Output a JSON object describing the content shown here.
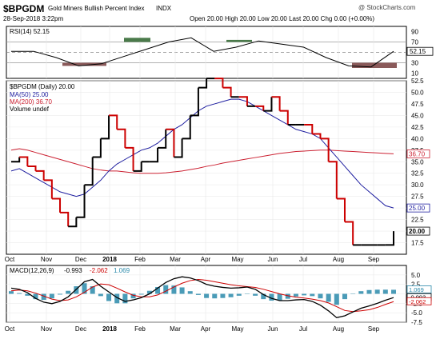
{
  "header": {
    "symbol": "$BPGDM",
    "name": "Gold Miners Bullish Percent Index",
    "exchange": "INDX",
    "date": "28-Sep-2018 3:22pm",
    "quote": "Open 20.00  High 20.00  Low 20.00  Last 20.00  Chg 0.00 (+0.00%)",
    "watermark": "@ StockCharts.com"
  },
  "colors": {
    "price": "#000000",
    "price_down": "#cc0000",
    "ma50": "#1f1fa0",
    "ma200": "#cc2233",
    "rsi_over": "#4a7a4a",
    "rsi_under": "#8a5a5a",
    "macd": "#000000",
    "signal": "#cc0000",
    "histogram": "#2a8aaa"
  },
  "chart_data": [
    {
      "type": "line",
      "title": "RSI(14) 52.15",
      "panel": "rsi",
      "ylim": [
        0,
        100
      ],
      "yticks": [
        "90",
        "70",
        "50",
        "30",
        "10"
      ],
      "last_label": "52.15",
      "x": [
        0,
        3,
        6,
        9,
        12,
        15,
        18,
        21,
        24,
        27,
        30,
        33,
        36,
        39,
        42,
        45,
        48,
        51
      ],
      "series": [
        {
          "name": "RSI(14)",
          "values": [
            52,
            52,
            40,
            24,
            28,
            42,
            56,
            70,
            78,
            52,
            60,
            72,
            66,
            60,
            40,
            24,
            22,
            52
          ]
        }
      ]
    },
    {
      "type": "line",
      "title": "$BPGDM (Daily) 20.00",
      "panel": "price",
      "ylim": [
        15,
        52.5
      ],
      "yticks": [
        "52.5",
        "50.0",
        "47.5",
        "45.0",
        "42.5",
        "40.0",
        "37.5",
        "35.0",
        "32.5",
        "30.0",
        "27.5",
        "25.0",
        "22.5",
        "20.0",
        "17.5"
      ],
      "legend": [
        "MA(50) 25.00",
        "MA(200) 36.70",
        "Volume undef"
      ],
      "last_labels": {
        "ma200": "36.70",
        "ma50": "25.00",
        "price": "20.00"
      },
      "x_labels": [
        "Oct",
        "Nov",
        "Dec",
        "2018",
        "Feb",
        "Mar",
        "Apr",
        "May",
        "Jun",
        "Jul",
        "Aug",
        "Sep"
      ],
      "series": [
        {
          "name": "$BPGDM",
          "points": [
            [
              0,
              35
            ],
            [
              1,
              36
            ],
            [
              2,
              34
            ],
            [
              3,
              33
            ],
            [
              4,
              31
            ],
            [
              5,
              27
            ],
            [
              6,
              24
            ],
            [
              7,
              21
            ],
            [
              8,
              23
            ],
            [
              9,
              30
            ],
            [
              10,
              36
            ],
            [
              11,
              40
            ],
            [
              12,
              45
            ],
            [
              13,
              42
            ],
            [
              14,
              38
            ],
            [
              15,
              33
            ],
            [
              16,
              35
            ],
            [
              17,
              35
            ],
            [
              18,
              38
            ],
            [
              19,
              42
            ],
            [
              20,
              36
            ],
            [
              21,
              40
            ],
            [
              22,
              45
            ],
            [
              23,
              51
            ],
            [
              24,
              53
            ],
            [
              25,
              53
            ],
            [
              26,
              51
            ],
            [
              27,
              49
            ],
            [
              28,
              49
            ],
            [
              29,
              47
            ],
            [
              30,
              47
            ],
            [
              31,
              46
            ],
            [
              32,
              49
            ],
            [
              33,
              46
            ],
            [
              34,
              43
            ],
            [
              35,
              43
            ],
            [
              36,
              43
            ],
            [
              37,
              41
            ],
            [
              38,
              40
            ],
            [
              39,
              35
            ],
            [
              40,
              27
            ],
            [
              41,
              22
            ],
            [
              42,
              17
            ],
            [
              43,
              17
            ],
            [
              44,
              17
            ],
            [
              45,
              17
            ],
            [
              46,
              17
            ],
            [
              47,
              20
            ]
          ]
        },
        {
          "name": "MA(50)",
          "values": [
            33,
            33.5,
            32.5,
            31.5,
            30.5,
            29.5,
            28.5,
            28,
            27.5,
            28,
            29.5,
            31,
            33,
            34.5,
            35.5,
            36.5,
            37.5,
            38,
            39,
            40.5,
            42,
            43,
            44.5,
            46,
            47,
            47.5,
            48,
            48.5,
            48.5,
            48,
            47,
            46,
            45,
            44,
            43,
            42,
            41.5,
            41,
            40,
            38,
            36,
            34,
            32,
            30,
            28.5,
            27,
            25.5,
            25
          ]
        },
        {
          "name": "MA(200)",
          "values": [
            37.5,
            37.8,
            37.5,
            37,
            36.5,
            36,
            35.5,
            35,
            34.5,
            34,
            33.5,
            33.2,
            33,
            33,
            32.8,
            32.6,
            32.5,
            32.5,
            32.5,
            32.6,
            32.8,
            33,
            33.3,
            33.6,
            34,
            34.3,
            34.7,
            35,
            35.3,
            35.6,
            35.9,
            36.2,
            36.5,
            36.8,
            37,
            37.2,
            37.3,
            37.4,
            37.5,
            37.5,
            37.4,
            37.3,
            37.2,
            37.1,
            37,
            36.9,
            36.8,
            36.7
          ]
        }
      ]
    },
    {
      "type": "line",
      "title": "MACD(12,26,9)",
      "panel": "macd",
      "legend": [
        "MACD(12,26,9)",
        "-0.993",
        "-2.062",
        "1.069"
      ],
      "ylim": [
        -7.5,
        7.5
      ],
      "yticks": [
        "5.0",
        "2.5",
        "0.0",
        "-2.5",
        "-5.0",
        "-7.5"
      ],
      "last_labels": {
        "hist": "1.069",
        "macd": "-0.993",
        "signal": "-2.062"
      },
      "x_labels": [
        "Oct",
        "Nov",
        "Dec",
        "2018",
        "Feb",
        "Mar",
        "Apr",
        "May",
        "Jun",
        "Jul",
        "Aug",
        "Sep"
      ],
      "series": [
        {
          "name": "MACD",
          "values": [
            1.5,
            1.2,
            0.3,
            -1.2,
            -2.2,
            -2.6,
            -2,
            -0.8,
            1.2,
            3.2,
            3.8,
            2,
            0.5,
            -1,
            -2,
            -1.6,
            -1,
            0,
            1.5,
            3,
            4,
            4.5,
            4.2,
            3.5,
            2.5,
            2,
            1.7,
            1.5,
            1.6,
            1.8,
            1.2,
            -0.2,
            -1.2,
            -1.8,
            -1.8,
            -1.6,
            -1.5,
            -2,
            -3,
            -4.5,
            -6.3,
            -5.8,
            -4.8,
            -3.8,
            -3.2,
            -2.5,
            -1.7,
            -0.99
          ]
        },
        {
          "name": "Signal",
          "values": [
            0.8,
            1,
            0.8,
            0.2,
            -0.6,
            -1.4,
            -1.8,
            -1.6,
            -0.8,
            0.4,
            1.8,
            2.6,
            2.4,
            1.5,
            0.5,
            -0.4,
            -0.8,
            -0.8,
            -0.3,
            0.7,
            1.8,
            2.8,
            3.5,
            3.8,
            3.6,
            3.2,
            2.8,
            2.4,
            2.1,
            1.9,
            1.7,
            1.2,
            0.6,
            0,
            -0.5,
            -0.9,
            -1.1,
            -1.4,
            -1.8,
            -2.4,
            -3.4,
            -4.4,
            -4.7,
            -4.5,
            -4.2,
            -3.6,
            -2.8,
            -2.06
          ]
        },
        {
          "name": "Histogram",
          "values": [
            0.7,
            0.2,
            -0.5,
            -1.4,
            -1.6,
            -1.2,
            -0.2,
            0.8,
            2,
            2.8,
            2,
            -0.6,
            -1.9,
            -2.5,
            -2.5,
            -1.2,
            -0.2,
            0.8,
            1.8,
            2.3,
            2.2,
            1.7,
            0.7,
            -0.3,
            -1.1,
            -1.2,
            -1.1,
            -0.9,
            -0.5,
            -0.1,
            -0.5,
            -1.4,
            -1.8,
            -1.8,
            -1.3,
            -0.7,
            -0.4,
            -0.6,
            -1.2,
            -2.1,
            -2.9,
            -1.4,
            -0.1,
            0.7,
            1,
            1.1,
            1.1,
            1.07
          ]
        }
      ]
    }
  ]
}
